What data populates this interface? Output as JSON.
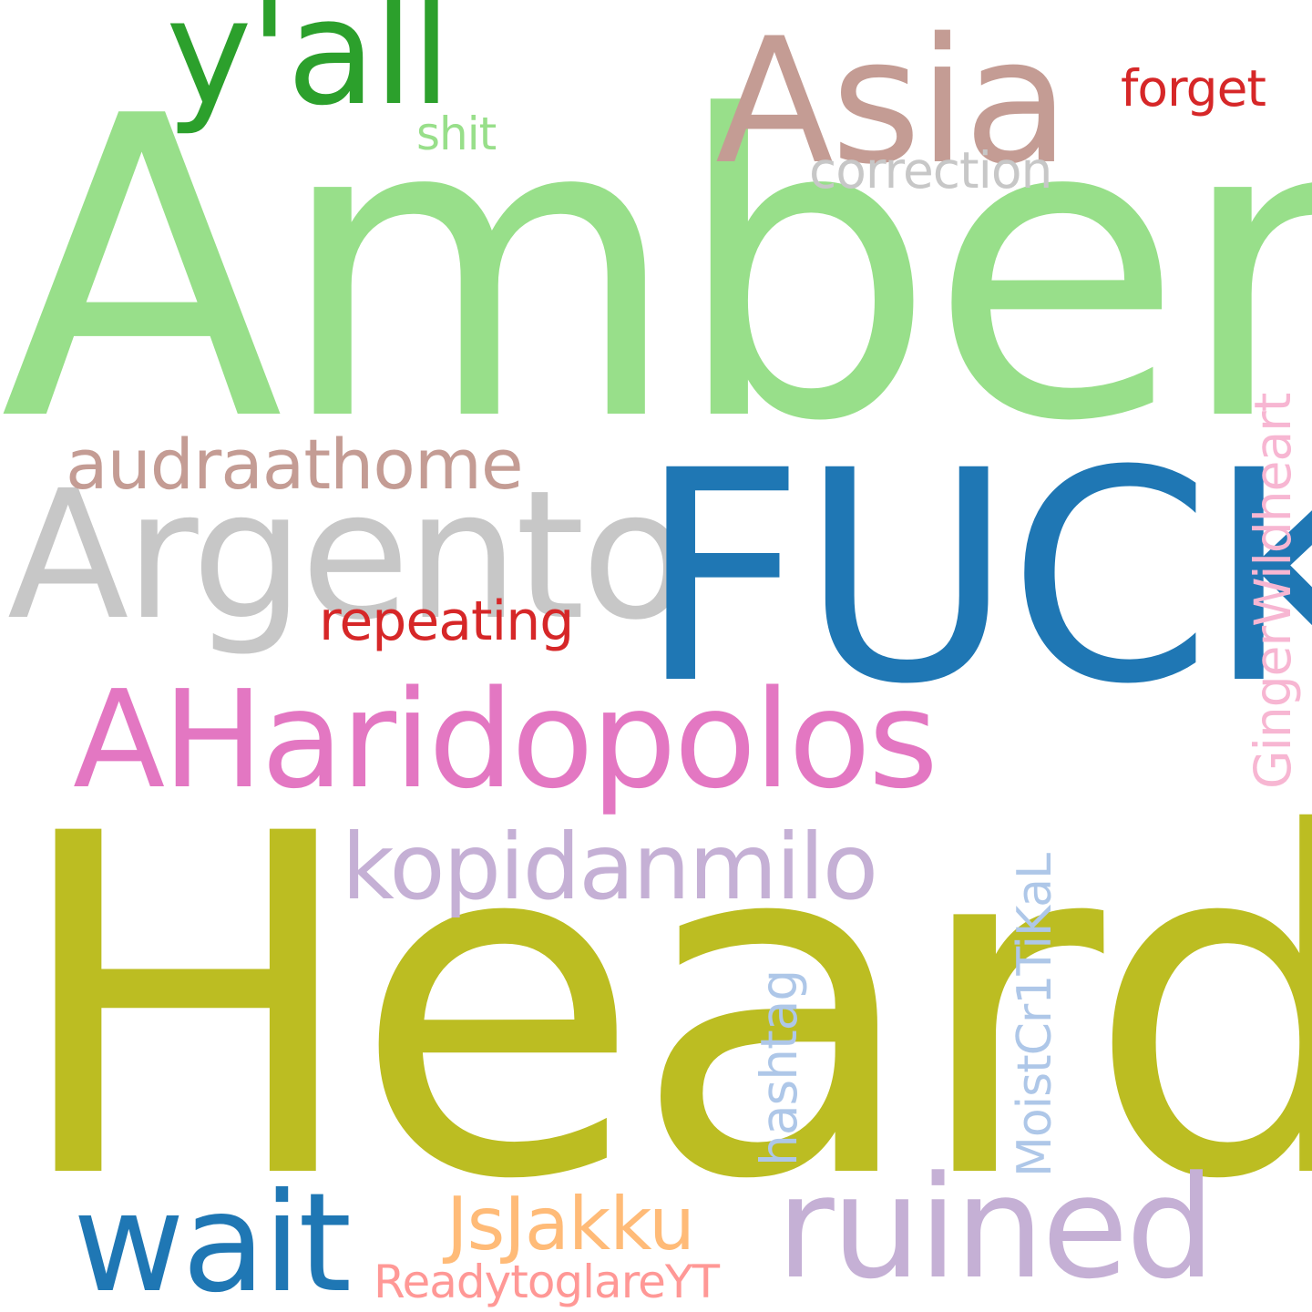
{
  "words": {
    "amber": {
      "text": "Amber",
      "color": "#98df8a"
    },
    "heard": {
      "text": "Heard",
      "color": "#bcbd22"
    },
    "fuck": {
      "text": "FUCK",
      "color": "#1f77b4"
    },
    "aharidopolos": {
      "text": "AHaridopolos",
      "color": "#e377c2"
    },
    "argento": {
      "text": "Argento",
      "color": "#c7c7c7"
    },
    "asia": {
      "text": "Asia",
      "color": "#c49c94"
    },
    "yall": {
      "text": "y'all",
      "color": "#2ca02c"
    },
    "ruined": {
      "text": "ruined",
      "color": "#c5b0d5"
    },
    "wait": {
      "text": "wait",
      "color": "#1f77b4"
    },
    "kopidanmilo": {
      "text": "kopidanmilo",
      "color": "#c5b0d5"
    },
    "audraathome": {
      "text": "audraathome",
      "color": "#c49c94"
    },
    "repeating": {
      "text": "repeating",
      "color": "#d62728"
    },
    "jsjakku": {
      "text": "JsJakku",
      "color": "#ffbb78"
    },
    "readytoglare": {
      "text": "ReadytoglareYT",
      "color": "#ff9896"
    },
    "forget": {
      "text": "forget",
      "color": "#d62728"
    },
    "shit": {
      "text": "shit",
      "color": "#98df8a"
    },
    "correction": {
      "text": "correction",
      "color": "#c7c7c7"
    },
    "ginger": {
      "text": "GingerWildheart",
      "color": "#f7b6d2"
    },
    "moist": {
      "text": "MoistCr1TiKaL",
      "color": "#aec7e8"
    },
    "hashtag": {
      "text": "hashtag",
      "color": "#aec7e8"
    }
  }
}
